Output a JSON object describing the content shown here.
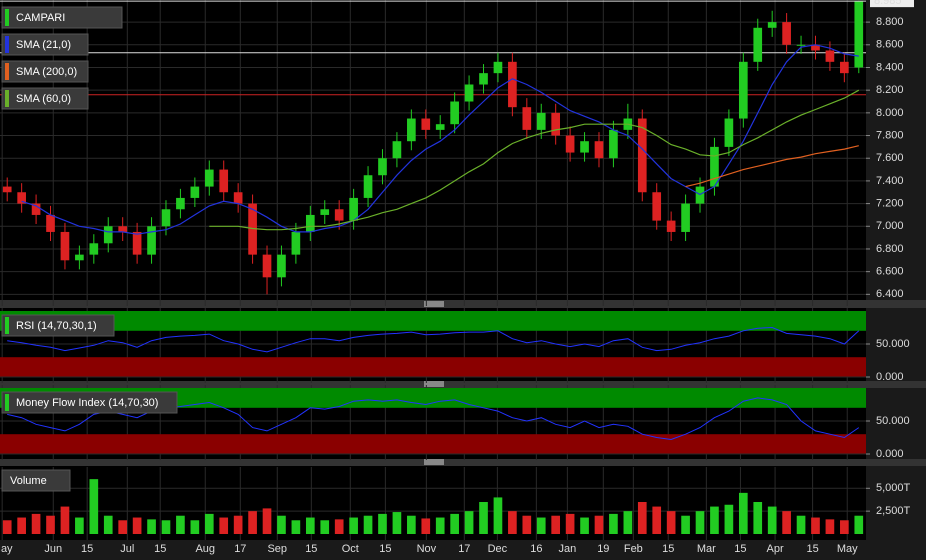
{
  "chart_data": [
    {
      "type": "candlestick",
      "name": "CAMPARI",
      "color": "#22cc22",
      "up_color": "#22cc22",
      "down_color": "#dd2222",
      "open": [
        7.35,
        7.3,
        7.2,
        7.1,
        6.95,
        6.7,
        6.75,
        6.85,
        7.0,
        6.95,
        6.75,
        7.0,
        7.15,
        7.25,
        7.35,
        7.5,
        7.3,
        7.2,
        6.75,
        6.55,
        6.75,
        6.95,
        7.1,
        7.15,
        7.05,
        7.25,
        7.45,
        7.6,
        7.75,
        7.95,
        7.85,
        7.9,
        8.1,
        8.25,
        8.35,
        8.45,
        8.05,
        7.85,
        8.0,
        7.8,
        7.65,
        7.75,
        7.6,
        7.85,
        7.95,
        7.3,
        7.05,
        6.95,
        7.2,
        7.35,
        7.7,
        7.95,
        8.45,
        8.75,
        8.8,
        8.6,
        8.6,
        8.55,
        8.45,
        8.4
      ],
      "high": [
        7.43,
        7.38,
        7.28,
        7.18,
        7.03,
        6.83,
        6.93,
        7.08,
        7.08,
        7.03,
        7.08,
        7.23,
        7.33,
        7.43,
        7.58,
        7.58,
        7.38,
        7.28,
        6.83,
        6.83,
        7.03,
        7.18,
        7.23,
        7.23,
        7.33,
        7.53,
        7.68,
        7.83,
        8.03,
        8.03,
        7.98,
        8.18,
        8.33,
        8.43,
        8.53,
        8.53,
        8.13,
        8.08,
        8.08,
        7.88,
        7.83,
        7.83,
        7.93,
        8.08,
        8.03,
        7.38,
        7.13,
        7.28,
        7.43,
        7.78,
        8.03,
        8.53,
        8.83,
        8.9,
        8.88,
        8.68,
        8.68,
        8.63,
        8.53,
        8.99
      ],
      "low": [
        7.22,
        7.12,
        7.02,
        6.87,
        6.62,
        6.62,
        6.67,
        6.77,
        6.87,
        6.67,
        6.67,
        6.92,
        7.07,
        7.17,
        7.27,
        7.22,
        7.12,
        6.67,
        6.4,
        6.47,
        6.67,
        6.87,
        7.02,
        6.97,
        6.97,
        7.17,
        7.37,
        7.52,
        7.67,
        7.77,
        7.77,
        7.82,
        8.02,
        8.17,
        8.27,
        7.97,
        7.77,
        7.77,
        7.72,
        7.57,
        7.57,
        7.52,
        7.52,
        7.77,
        7.22,
        6.97,
        6.87,
        6.87,
        7.12,
        7.27,
        7.62,
        7.87,
        8.37,
        8.67,
        8.52,
        8.52,
        8.47,
        8.37,
        8.27,
        8.35
      ],
      "close": [
        7.3,
        7.2,
        7.1,
        6.95,
        6.7,
        6.75,
        6.85,
        7.0,
        6.95,
        6.75,
        7.0,
        7.15,
        7.25,
        7.35,
        7.5,
        7.3,
        7.2,
        6.75,
        6.55,
        6.75,
        6.95,
        7.1,
        7.15,
        7.05,
        7.25,
        7.45,
        7.6,
        7.75,
        7.95,
        7.85,
        7.9,
        8.1,
        8.25,
        8.35,
        8.45,
        8.05,
        7.85,
        8.0,
        7.8,
        7.65,
        7.75,
        7.6,
        7.85,
        7.95,
        7.3,
        7.05,
        6.95,
        7.2,
        7.35,
        7.7,
        7.95,
        8.45,
        8.75,
        8.8,
        8.6,
        8.6,
        8.55,
        8.45,
        8.35,
        8.985
      ],
      "overlays": [
        {
          "name": "SMA (21,0)",
          "color": "#2233dd",
          "values": [
            null,
            7.22,
            7.18,
            7.1,
            7.05,
            7.0,
            6.98,
            6.95,
            6.95,
            6.93,
            6.95,
            6.97,
            7.02,
            7.1,
            7.18,
            7.22,
            7.2,
            7.15,
            7.08,
            7.0,
            6.95,
            6.95,
            6.98,
            7.0,
            7.05,
            7.15,
            7.3,
            7.45,
            7.58,
            7.68,
            7.75,
            7.85,
            7.98,
            8.1,
            8.22,
            8.3,
            8.25,
            8.18,
            8.1,
            8.02,
            7.97,
            7.92,
            7.85,
            7.8,
            7.68,
            7.55,
            7.42,
            7.35,
            7.28,
            7.35,
            7.55,
            7.75,
            8.0,
            8.25,
            8.45,
            8.58,
            8.6,
            8.57,
            8.52,
            8.5
          ]
        },
        {
          "name": "SMA (200,0)",
          "color": "#e06020",
          "values": [
            null,
            null,
            null,
            null,
            null,
            null,
            null,
            null,
            null,
            null,
            null,
            null,
            null,
            null,
            null,
            null,
            null,
            null,
            null,
            null,
            null,
            null,
            null,
            null,
            null,
            null,
            null,
            null,
            null,
            null,
            null,
            null,
            null,
            null,
            null,
            null,
            null,
            null,
            null,
            null,
            null,
            null,
            null,
            null,
            null,
            null,
            null,
            7.35,
            7.38,
            7.42,
            7.46,
            7.5,
            7.53,
            7.56,
            7.59,
            7.61,
            7.64,
            7.66,
            7.68,
            7.71
          ]
        },
        {
          "name": "SMA (60,0)",
          "color": "#6ab02a",
          "values": [
            null,
            null,
            null,
            null,
            null,
            null,
            null,
            null,
            null,
            null,
            null,
            null,
            null,
            null,
            7.0,
            7.0,
            7.0,
            6.98,
            6.97,
            6.97,
            6.98,
            7.0,
            7.0,
            7.02,
            7.05,
            7.08,
            7.12,
            7.15,
            7.2,
            7.25,
            7.32,
            7.4,
            7.48,
            7.55,
            7.65,
            7.73,
            7.78,
            7.82,
            7.85,
            7.87,
            7.9,
            7.9,
            7.9,
            7.9,
            7.87,
            7.8,
            7.72,
            7.68,
            7.63,
            7.62,
            7.65,
            7.72,
            7.78,
            7.85,
            7.92,
            7.98,
            8.03,
            8.08,
            8.13,
            8.2
          ]
        }
      ],
      "hlines": [
        {
          "value": 8.16,
          "color": "#cc2222"
        },
        {
          "value": 8.53,
          "color": "#dddddd"
        }
      ],
      "ylim": [
        6.35,
        8.995
      ],
      "yticks": [
        {
          "value": 6.4,
          "label": "6.400"
        },
        {
          "value": 6.6,
          "label": "6.600"
        },
        {
          "value": 6.8,
          "label": "6.800"
        },
        {
          "value": 7.0,
          "label": "7.000"
        },
        {
          "value": 7.2,
          "label": "7.200"
        },
        {
          "value": 7.4,
          "label": "7.400"
        },
        {
          "value": 7.6,
          "label": "7.600"
        },
        {
          "value": 7.8,
          "label": "7.800"
        },
        {
          "value": 8.0,
          "label": "8.000"
        },
        {
          "value": 8.2,
          "label": "8.200"
        },
        {
          "value": 8.4,
          "label": "8.400"
        },
        {
          "value": 8.6,
          "label": "8.600"
        },
        {
          "value": 8.8,
          "label": "8.800"
        }
      ],
      "xlim": [
        -0.5,
        59.5
      ],
      "xticks": [
        {
          "value": -0.35,
          "label": "May"
        },
        {
          "value": 3.19,
          "label": "Jun"
        },
        {
          "value": 5.54,
          "label": "15"
        },
        {
          "value": 8.32,
          "label": "Jul"
        },
        {
          "value": 10.6,
          "label": "15"
        },
        {
          "value": 13.72,
          "label": "Aug"
        },
        {
          "value": 16.15,
          "label": "17"
        },
        {
          "value": 18.71,
          "label": "Sep"
        },
        {
          "value": 21.07,
          "label": "15"
        },
        {
          "value": 23.77,
          "label": "Oct"
        },
        {
          "value": 26.2,
          "label": "15"
        },
        {
          "value": 29.04,
          "label": "Nov"
        },
        {
          "value": 31.67,
          "label": "17"
        },
        {
          "value": 33.96,
          "label": "Dec"
        },
        {
          "value": 36.66,
          "label": "16"
        },
        {
          "value": 38.81,
          "label": "Jan"
        },
        {
          "value": 41.3,
          "label": "19"
        },
        {
          "value": 43.38,
          "label": "Feb"
        },
        {
          "value": 45.8,
          "label": "15"
        },
        {
          "value": 48.44,
          "label": "Mar"
        },
        {
          "value": 50.8,
          "label": "15"
        },
        {
          "value": 53.2,
          "label": "Apr"
        },
        {
          "value": 55.8,
          "label": "15"
        },
        {
          "value": 58.2,
          "label": "May"
        }
      ],
      "grid": true
    },
    {
      "type": "oscillator",
      "series": [
        {
          "name": "RSI (14,70,30,1)",
          "color": "#2233ff",
          "values": [
            55,
            52,
            48,
            45,
            40,
            44,
            48,
            55,
            52,
            45,
            55,
            60,
            62,
            63,
            65,
            55,
            50,
            42,
            38,
            45,
            52,
            58,
            58,
            55,
            60,
            63,
            65,
            66,
            68,
            64,
            65,
            67,
            68,
            68,
            70,
            58,
            52,
            55,
            50,
            46,
            50,
            46,
            55,
            58,
            45,
            40,
            42,
            48,
            52,
            58,
            62,
            70,
            74,
            75,
            66,
            64,
            62,
            58,
            50,
            70
          ]
        }
      ],
      "upper": 70,
      "lower": 30,
      "ylim": [
        0,
        100
      ],
      "yticks": [
        {
          "value": 0,
          "label": "0.000"
        },
        {
          "value": 50,
          "label": "50.000"
        }
      ]
    },
    {
      "type": "oscillator",
      "series": [
        {
          "name": "Money Flow Index (14,70,30)",
          "color": "#2233ff",
          "values": [
            60,
            55,
            45,
            40,
            35,
            45,
            60,
            65,
            60,
            55,
            65,
            70,
            72,
            75,
            78,
            70,
            60,
            40,
            35,
            45,
            55,
            70,
            68,
            72,
            80,
            82,
            80,
            82,
            78,
            75,
            80,
            82,
            75,
            70,
            65,
            55,
            50,
            55,
            45,
            40,
            50,
            40,
            45,
            42,
            30,
            25,
            22,
            30,
            40,
            55,
            65,
            80,
            85,
            82,
            75,
            50,
            35,
            30,
            25,
            40
          ]
        }
      ],
      "upper": 70,
      "lower": 30,
      "ylim": [
        0,
        100
      ],
      "yticks": [
        {
          "value": 0,
          "label": "0.000"
        },
        {
          "value": 50,
          "label": "50.000"
        }
      ]
    },
    {
      "type": "volume",
      "name": "Volume",
      "values": [
        1500,
        1800,
        2200,
        2000,
        3000,
        1800,
        6000,
        2000,
        1500,
        1800,
        1600,
        1500,
        2000,
        1500,
        2200,
        1800,
        2000,
        2500,
        2800,
        2000,
        1500,
        1800,
        1500,
        1600,
        1800,
        2000,
        2200,
        2400,
        2000,
        1700,
        1800,
        2200,
        2500,
        3500,
        4000,
        2500,
        2000,
        1800,
        2000,
        2200,
        1800,
        2000,
        2200,
        2500,
        3500,
        3000,
        2500,
        2000,
        2500,
        3000,
        3200,
        4500,
        3500,
        3000,
        2500,
        2000,
        1800,
        1600,
        1500,
        2000
      ],
      "ylim": [
        0,
        7000
      ],
      "yticks": [
        {
          "value": 2500,
          "label": "2,500T"
        },
        {
          "value": 5000,
          "label": "5,000T"
        }
      ]
    }
  ]
}
